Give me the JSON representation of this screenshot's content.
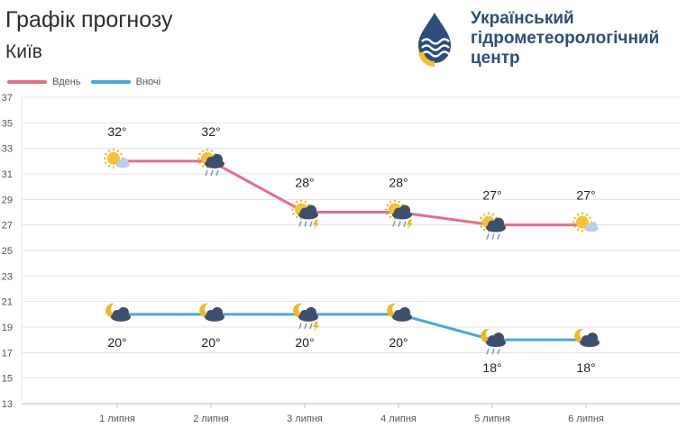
{
  "header": {
    "title": "Графік прогнозу",
    "city": "Київ"
  },
  "logo": {
    "line1": "Український",
    "line2": "гідрометеорологічний",
    "line3": "центр",
    "icon": "drop-sun-waves-icon"
  },
  "colors": {
    "day": "#e0708a",
    "night": "#4aa6d8",
    "grid": "#e3e3e3",
    "brand": "#2d4d7a"
  },
  "chart_data": {
    "type": "line",
    "title": "",
    "xlabel": "",
    "ylabel": "",
    "categories": [
      "1 липня",
      "2 липня",
      "3 липня",
      "4 липня",
      "5 липня",
      "6 липня"
    ],
    "ylim": [
      13,
      37
    ],
    "yticks": [
      13,
      15,
      17,
      19,
      21,
      23,
      25,
      27,
      29,
      31,
      33,
      35,
      37
    ],
    "grid": true,
    "legend_position": "top-left",
    "series": [
      {
        "name": "Вдень",
        "color": "#e0708a",
        "values": [
          32,
          32,
          28,
          28,
          27,
          27
        ],
        "labels": [
          "32°",
          "32°",
          "28°",
          "28°",
          "27°",
          "27°"
        ],
        "icons": [
          "sun-partly-cloudy-icon",
          "sun-cloud-rain-icon",
          "sun-cloud-rain-thunder-icon",
          "sun-cloud-rain-thunder-icon",
          "sun-cloud-rain-icon",
          "sun-partly-cloudy-icon"
        ]
      },
      {
        "name": "Вночі",
        "color": "#4aa6d8",
        "values": [
          20,
          20,
          20,
          20,
          18,
          18
        ],
        "labels": [
          "20°",
          "20°",
          "20°",
          "20°",
          "18°",
          "18°"
        ],
        "icons": [
          "moon-cloud-icon",
          "moon-cloud-icon",
          "moon-cloud-rain-thunder-icon",
          "moon-cloud-icon",
          "moon-cloud-rain-icon",
          "moon-cloud-icon"
        ]
      }
    ]
  }
}
